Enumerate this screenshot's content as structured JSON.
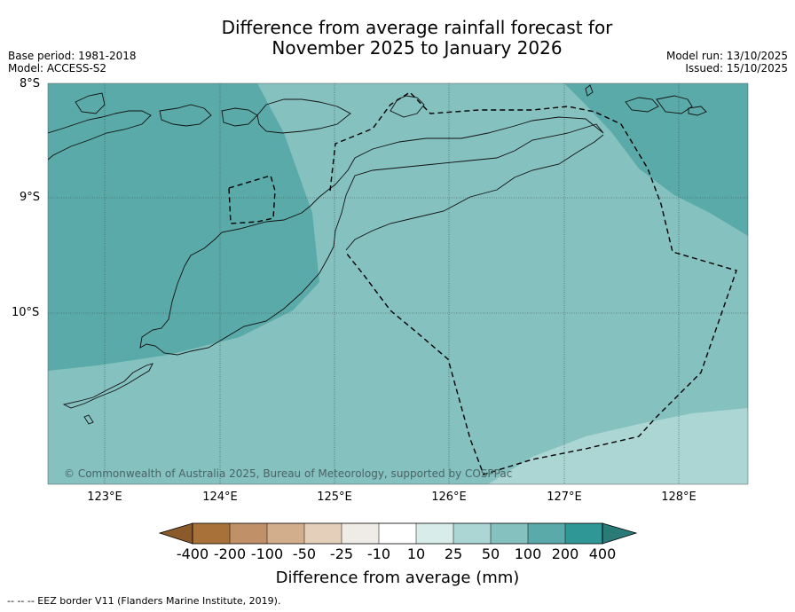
{
  "title": {
    "line1": "Difference from average rainfall forecast for",
    "line2": "November 2025 to January 2026"
  },
  "meta": {
    "base_period": "Base period: 1981-2018",
    "model": "Model: ACCESS-S2",
    "model_run": "Model run: 13/10/2025",
    "issued": "Issued: 15/10/2025"
  },
  "map": {
    "lat_labels": [
      "8°S",
      "9°S",
      "10°S"
    ],
    "lon_labels": [
      "123°E",
      "124°E",
      "125°E",
      "126°E",
      "127°E",
      "128°E"
    ],
    "copyright": "© Commonwealth of Australia 2025, Bureau of Meteorology, supported by COSPPac"
  },
  "colorbar": {
    "tick_labels": [
      "-400",
      "-200",
      "-100",
      "-50",
      "-25",
      "-10",
      "10",
      "25",
      "50",
      "100",
      "200",
      "400"
    ],
    "colors": [
      "#a8713a",
      "#c09169",
      "#d2ae8c",
      "#e4cfbb",
      "#efebe7",
      "#ffffff",
      "#d8ecea",
      "#acd6d4",
      "#84c1bf",
      "#5aaaa9",
      "#2f9897"
    ],
    "extend_low_color": "#8a5a2a",
    "extend_high_color": "#2a7a78",
    "title": "Difference from average (mm)"
  },
  "footer": "--  --  -- EEZ border V11 (Flanders Marine Institute, 2019)."
}
